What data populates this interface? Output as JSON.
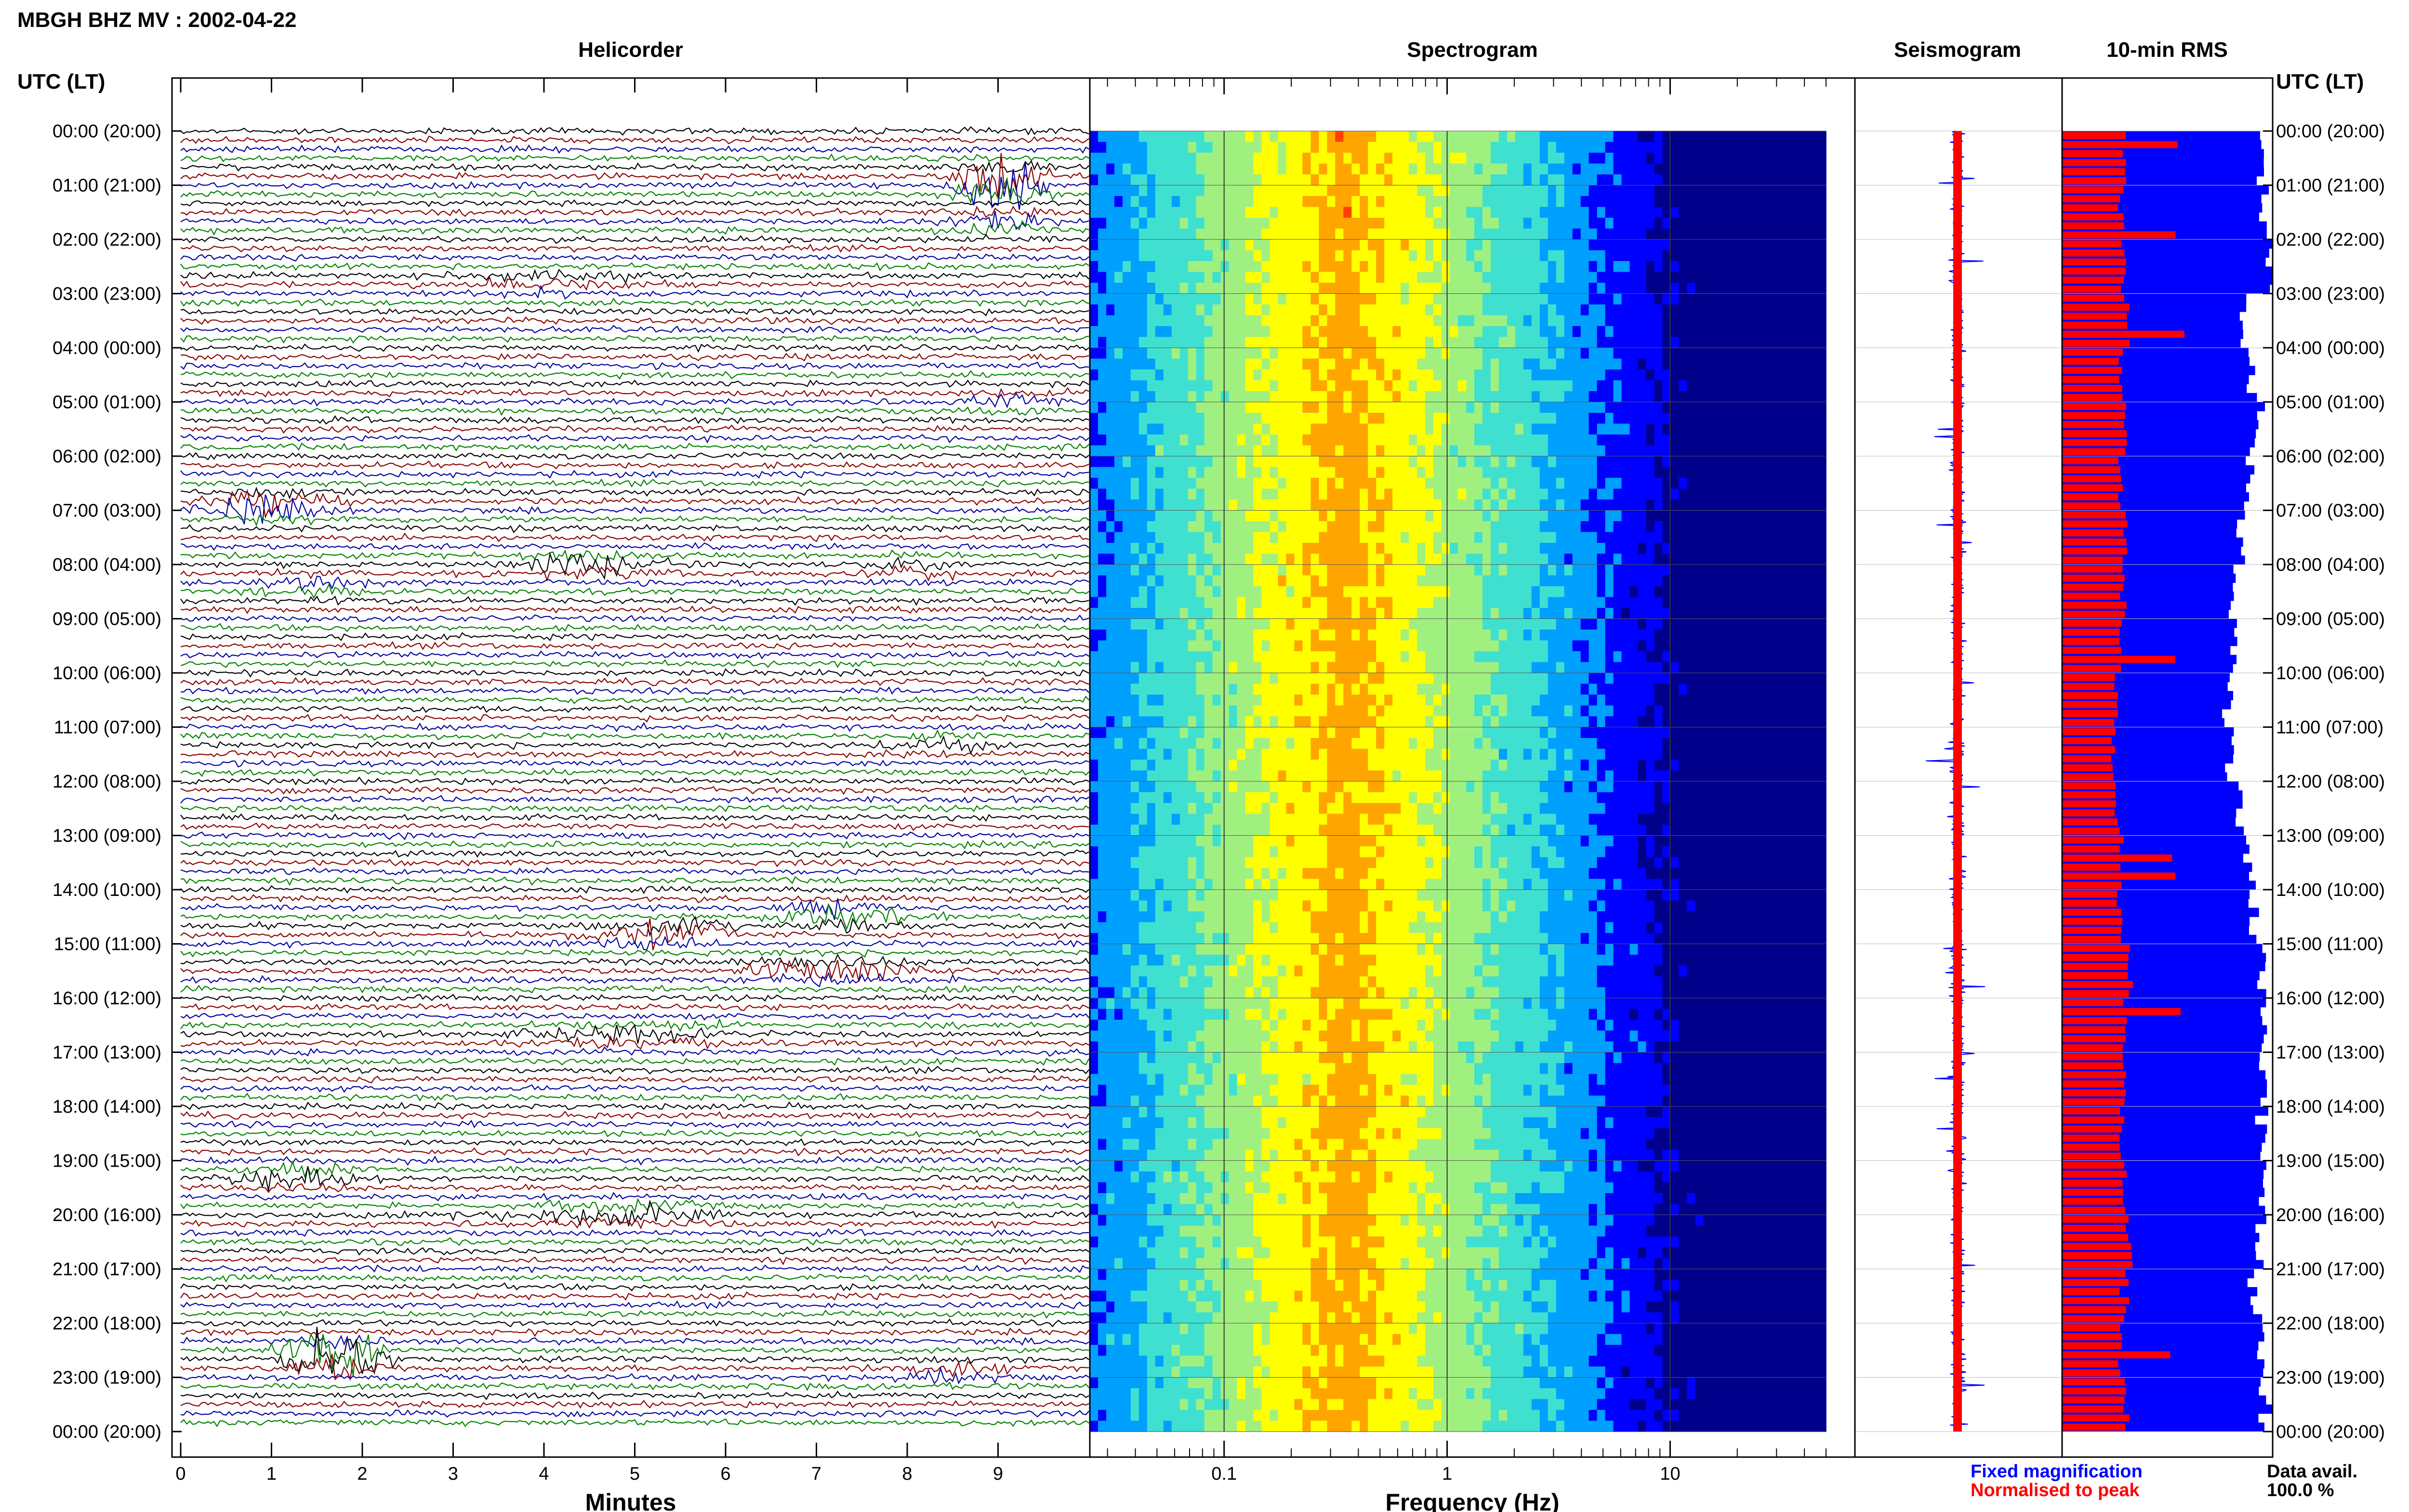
{
  "title": "MBGH BHZ MV : 2002-04-22",
  "colors": {
    "trace_cycle": [
      "#000000",
      "#8b0000",
      "#0000a0",
      "#008000"
    ],
    "rms_fixed": "#0000ff",
    "rms_normalised": "#ff0000",
    "fixed_magnification_text": "#0000ff",
    "normalised_to_peak_text": "#ff0000"
  },
  "chart_data": [
    {
      "type": "line",
      "panel": "helicorder",
      "title": "Helicorder",
      "xlabel": "Minutes",
      "ylabel": "UTC (LT)",
      "xlim": [
        0,
        10
      ],
      "x_ticks": [
        "0",
        "1",
        "2",
        "3",
        "4",
        "5",
        "6",
        "7",
        "8",
        "9"
      ],
      "y_tick_labels": [
        "00:00 (20:00)",
        "01:00 (21:00)",
        "02:00 (22:00)",
        "03:00 (23:00)",
        "04:00 (00:00)",
        "05:00 (01:00)",
        "06:00 (02:00)",
        "07:00 (03:00)",
        "08:00 (04:00)",
        "09:00 (05:00)",
        "10:00 (06:00)",
        "11:00 (07:00)",
        "12:00 (08:00)",
        "13:00 (09:00)",
        "14:00 (10:00)",
        "15:00 (11:00)",
        "16:00 (12:00)",
        "17:00 (13:00)",
        "18:00 (14:00)",
        "19:00 (15:00)",
        "20:00 (16:00)",
        "21:00 (17:00)",
        "22:00 (18:00)",
        "23:00 (19:00)",
        "00:00 (20:00)"
      ],
      "right_y_label": "UTC (LT)",
      "lines_per_hour": 6,
      "line_count": 144,
      "events": [
        {
          "hour": 0.95,
          "minute": 9.0,
          "amplitude": 0.95,
          "width": 0.45,
          "color": "#8b0000"
        },
        {
          "hour": 1.7,
          "minute": 9.0,
          "amplitude": 0.25,
          "width": 0.6,
          "color": "#008000"
        },
        {
          "hour": 2.8,
          "minute": 4.0,
          "amplitude": 0.2,
          "width": 1.2,
          "color": "#0000a0"
        },
        {
          "hour": 5.0,
          "minute": 9.1,
          "amplitude": 0.2,
          "width": 0.7,
          "color": "#008000"
        },
        {
          "hour": 6.9,
          "minute": 1.0,
          "amplitude": 0.45,
          "width": 0.7,
          "color": "#0000a0"
        },
        {
          "hour": 8.0,
          "minute": 4.5,
          "amplitude": 0.25,
          "width": 1.0,
          "color": "#000000"
        },
        {
          "hour": 8.1,
          "minute": 8.1,
          "amplitude": 0.2,
          "width": 0.6,
          "color": "#8b0000"
        },
        {
          "hour": 8.4,
          "minute": 1.5,
          "amplitude": 0.2,
          "width": 0.7,
          "color": "#008000"
        },
        {
          "hour": 11.3,
          "minute": 8.3,
          "amplitude": 0.2,
          "width": 0.6,
          "color": "#000000"
        },
        {
          "hour": 14.5,
          "minute": 7.3,
          "amplitude": 0.35,
          "width": 0.7,
          "color": "#8b0000"
        },
        {
          "hour": 14.8,
          "minute": 5.3,
          "amplitude": 0.35,
          "width": 0.8,
          "color": "#000000"
        },
        {
          "hour": 15.5,
          "minute": 7.3,
          "amplitude": 0.35,
          "width": 0.9,
          "color": "#008000"
        },
        {
          "hour": 16.7,
          "minute": 5.0,
          "amplitude": 0.2,
          "width": 1.4,
          "color": "#8b0000"
        },
        {
          "hour": 19.3,
          "minute": 1.3,
          "amplitude": 0.3,
          "width": 0.8,
          "color": "#0000a0"
        },
        {
          "hour": 20.0,
          "minute": 4.6,
          "amplitude": 0.25,
          "width": 1.2,
          "color": "#8b0000"
        },
        {
          "hour": 22.6,
          "minute": 1.7,
          "amplitude": 0.9,
          "width": 0.5,
          "color": "#8b0000"
        },
        {
          "hour": 22.9,
          "minute": 8.5,
          "amplitude": 0.2,
          "width": 0.6,
          "color": "#008000"
        }
      ]
    },
    {
      "type": "heatmap",
      "panel": "spectrogram",
      "title": "Spectrogram",
      "xlabel": "Frequency (Hz)",
      "x_scale": "log",
      "xlim": [
        0.025,
        50
      ],
      "x_ticks": [
        "0.1",
        "1",
        "10"
      ],
      "x_tick_values": [
        0.1,
        1,
        10
      ],
      "peak_frequency_hz": 0.35,
      "color_scale": [
        "#00008b",
        "#0000ff",
        "#00a0ff",
        "#40e0d0",
        "#a0f080",
        "#ffff00",
        "#ffa500",
        "#ff4000"
      ]
    },
    {
      "type": "line",
      "panel": "seismogram",
      "title": "Seismogram",
      "series": [
        {
          "name": "Fixed magnification",
          "color": "#0000ff"
        },
        {
          "name": "Normalised to peak",
          "color": "#ff0000"
        }
      ]
    },
    {
      "type": "bar",
      "panel": "10-min-rms",
      "title": "10-min RMS",
      "bars_per_hour": 6,
      "series": [
        {
          "name": "Fixed magnification",
          "color": "#0000ff",
          "hourly_level": [
            0.95,
            0.97,
            1.0,
            0.88,
            0.9,
            0.92,
            0.88,
            0.85,
            0.8,
            0.82,
            0.78,
            0.8,
            0.85,
            0.88,
            0.9,
            0.95,
            0.97,
            0.95,
            0.95,
            0.95,
            0.93,
            0.92,
            0.95,
            0.97,
            0.97
          ]
        },
        {
          "name": "Normalised to peak",
          "color": "#ff0000",
          "hourly_level": [
            0.3,
            0.28,
            0.3,
            0.32,
            0.28,
            0.3,
            0.28,
            0.3,
            0.3,
            0.28,
            0.26,
            0.25,
            0.26,
            0.28,
            0.27,
            0.32,
            0.3,
            0.29,
            0.28,
            0.3,
            0.32,
            0.3,
            0.28,
            0.3,
            0.3
          ]
        }
      ]
    }
  ],
  "legend": {
    "fixed_magnification": "Fixed magnification",
    "normalised_to_peak": "Normalised to peak",
    "data_avail_label": "Data avail.",
    "data_avail_value": "100.0 %"
  }
}
